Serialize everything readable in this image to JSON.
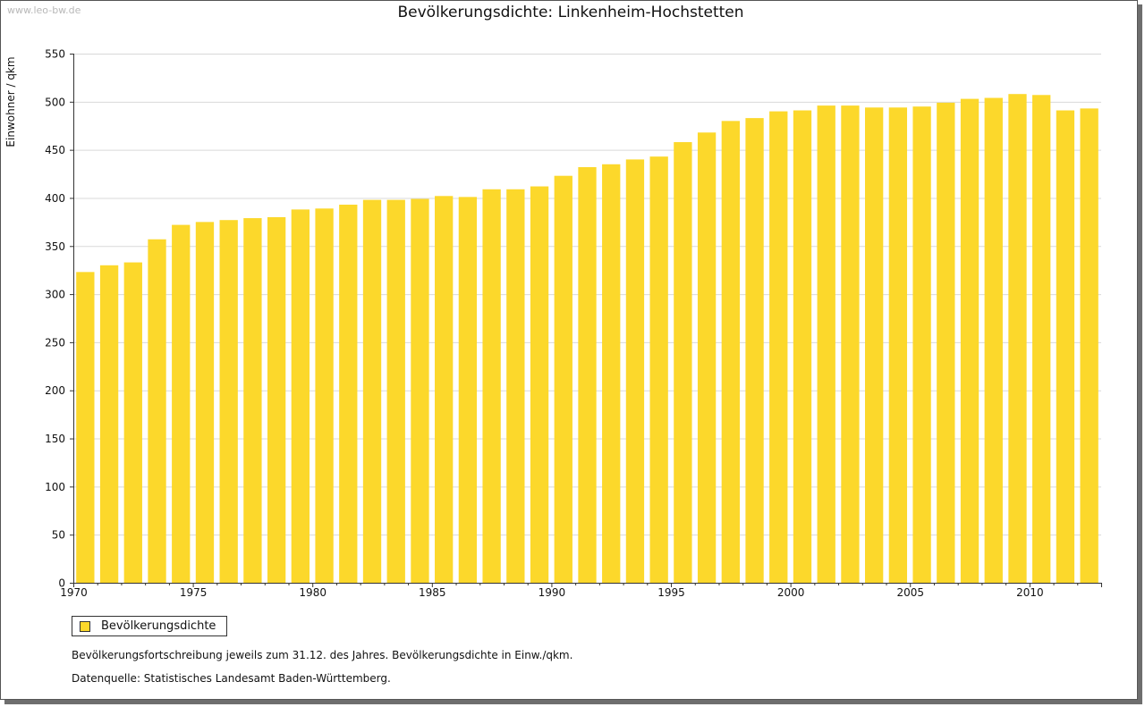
{
  "watermark": "www.leo-bw.de",
  "chart_data": {
    "type": "bar",
    "title": "Bevölkerungsdichte: Linkenheim-Hochstetten",
    "xlabel": "",
    "ylabel": "Einwohner / qkm",
    "ylim": [
      0,
      550
    ],
    "yticks": [
      0,
      50,
      100,
      150,
      200,
      250,
      300,
      350,
      400,
      450,
      500,
      550
    ],
    "xtick_labels": [
      "1970",
      "1975",
      "1980",
      "1985",
      "1990",
      "1995",
      "2000",
      "2005",
      "2010"
    ],
    "grid": true,
    "legend_position": "bottom-left",
    "bar_color": "#fcd82b",
    "categories": [
      "1970",
      "1971",
      "1972",
      "1973",
      "1974",
      "1975",
      "1976",
      "1977",
      "1978",
      "1979",
      "1980",
      "1981",
      "1982",
      "1983",
      "1984",
      "1985",
      "1986",
      "1987",
      "1988",
      "1989",
      "1990",
      "1991",
      "1992",
      "1993",
      "1994",
      "1995",
      "1996",
      "1997",
      "1998",
      "1999",
      "2000",
      "2001",
      "2002",
      "2003",
      "2004",
      "2005",
      "2006",
      "2007",
      "2008",
      "2009",
      "2010",
      "2011",
      "2012"
    ],
    "series": [
      {
        "name": "Bevölkerungsdichte",
        "values": [
          323,
          330,
          333,
          357,
          372,
          375,
          377,
          379,
          380,
          388,
          389,
          393,
          398,
          398,
          399,
          402,
          401,
          409,
          409,
          412,
          423,
          432,
          435,
          440,
          443,
          458,
          468,
          480,
          483,
          490,
          491,
          496,
          496,
          494,
          494,
          495,
          499,
          503,
          504,
          508,
          507,
          491,
          493
        ]
      }
    ]
  },
  "legend": {
    "label": "Bevölkerungsdichte"
  },
  "notes": {
    "line1": "Bevölkerungsfortschreibung jeweils zum 31.12. des Jahres. Bevölkerungsdichte in Einw./qkm.",
    "line2": "Datenquelle: Statistisches Landesamt Baden-Württemberg."
  }
}
